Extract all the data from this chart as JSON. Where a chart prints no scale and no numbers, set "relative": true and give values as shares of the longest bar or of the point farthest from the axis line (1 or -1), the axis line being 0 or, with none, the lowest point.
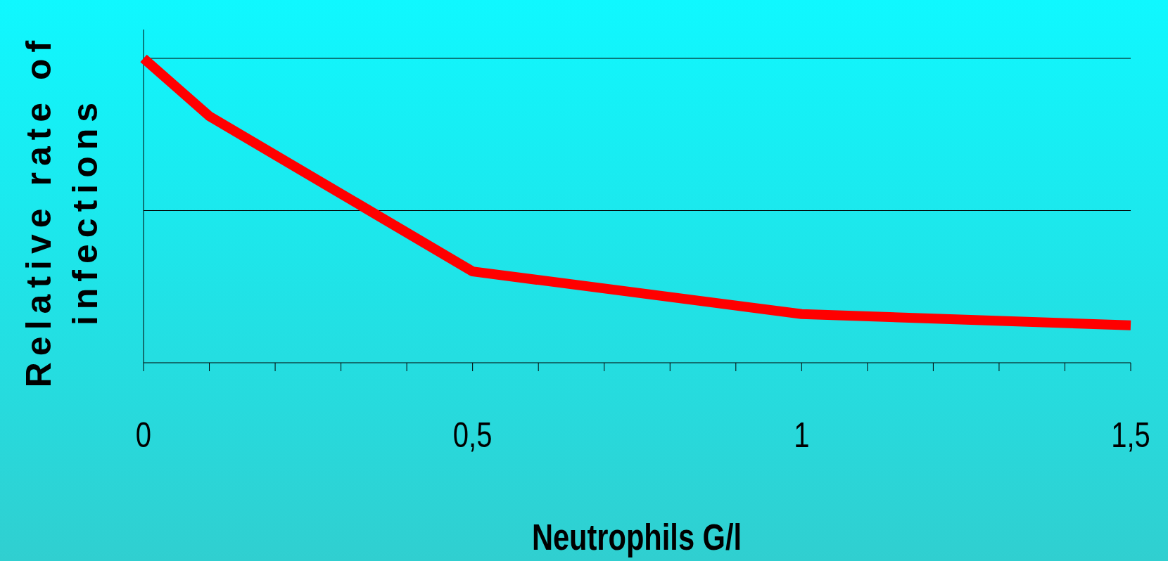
{
  "chart_data": {
    "type": "line",
    "relative": true,
    "xlabel": "Neutrophils G/l",
    "ylabel": "Relative rate of infections",
    "x": [
      0,
      0.1,
      0.5,
      1,
      1.5
    ],
    "series": [
      {
        "color": "#ff0000",
        "values": [
          1,
          0.81,
          0.3,
          0.16,
          0.123
        ]
      }
    ],
    "xlim": [
      0,
      1.5
    ],
    "xticks": [
      {
        "value": 0,
        "label": "0"
      },
      {
        "value": 0.1,
        "label": null
      },
      {
        "value": 0.2,
        "label": null
      },
      {
        "value": 0.3,
        "label": null
      },
      {
        "value": 0.4,
        "label": null
      },
      {
        "value": 0.5,
        "label": "0,5"
      },
      {
        "value": 0.6,
        "label": null
      },
      {
        "value": 0.7,
        "label": null
      },
      {
        "value": 0.8,
        "label": null
      },
      {
        "value": 0.9,
        "label": null
      },
      {
        "value": 1,
        "label": "1"
      },
      {
        "value": 1.1,
        "label": null
      },
      {
        "value": 1.2,
        "label": null
      },
      {
        "value": 1.3,
        "label": null
      },
      {
        "value": 1.4,
        "label": null
      },
      {
        "value": 1.5,
        "label": "1,5"
      }
    ],
    "ref_lines": [
      {
        "axis": "y",
        "value": 0.5
      },
      {
        "axis": "y",
        "value": 1
      }
    ],
    "marker": "none",
    "line_style": "solid"
  }
}
